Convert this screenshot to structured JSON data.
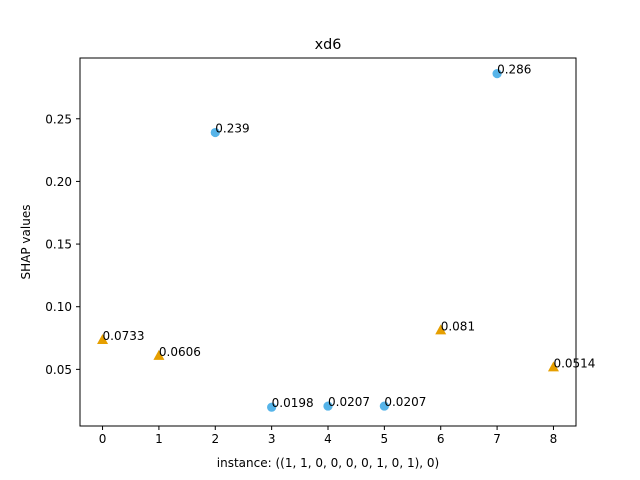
{
  "chart_data": {
    "type": "scatter",
    "title": "xd6",
    "xlabel": "instance: ((1, 1, 0, 0, 0, 0, 1, 0, 1), 0)",
    "ylabel": "SHAP values",
    "xlim": [
      -0.4,
      8.4
    ],
    "ylim": [
      0.0048,
      0.2985
    ],
    "x_ticks": [
      0,
      1,
      2,
      3,
      4,
      5,
      6,
      7,
      8
    ],
    "x_tick_labels": [
      "0",
      "1",
      "2",
      "3",
      "4",
      "5",
      "6",
      "7",
      "8"
    ],
    "y_ticks": [
      0.05,
      0.1,
      0.15,
      0.2,
      0.25
    ],
    "y_tick_labels": [
      "0.05",
      "0.10",
      "0.15",
      "0.20",
      "0.25"
    ],
    "grid": false,
    "series": [
      {
        "marker": "circle",
        "color": "#56b4e9",
        "points": [
          {
            "x": 2,
            "y": 0.239,
            "label": "0.239"
          },
          {
            "x": 3,
            "y": 0.0198,
            "label": "0.0198"
          },
          {
            "x": 4,
            "y": 0.0207,
            "label": "0.0207"
          },
          {
            "x": 5,
            "y": 0.0207,
            "label": "0.0207"
          },
          {
            "x": 7,
            "y": 0.286,
            "label": "0.286"
          }
        ]
      },
      {
        "marker": "triangle",
        "color": "#e69f00",
        "points": [
          {
            "x": 0,
            "y": 0.0733,
            "label": "0.0733"
          },
          {
            "x": 1,
            "y": 0.0606,
            "label": "0.0606"
          },
          {
            "x": 6,
            "y": 0.081,
            "label": "0.081"
          },
          {
            "x": 8,
            "y": 0.0514,
            "label": "0.0514"
          }
        ]
      }
    ]
  }
}
